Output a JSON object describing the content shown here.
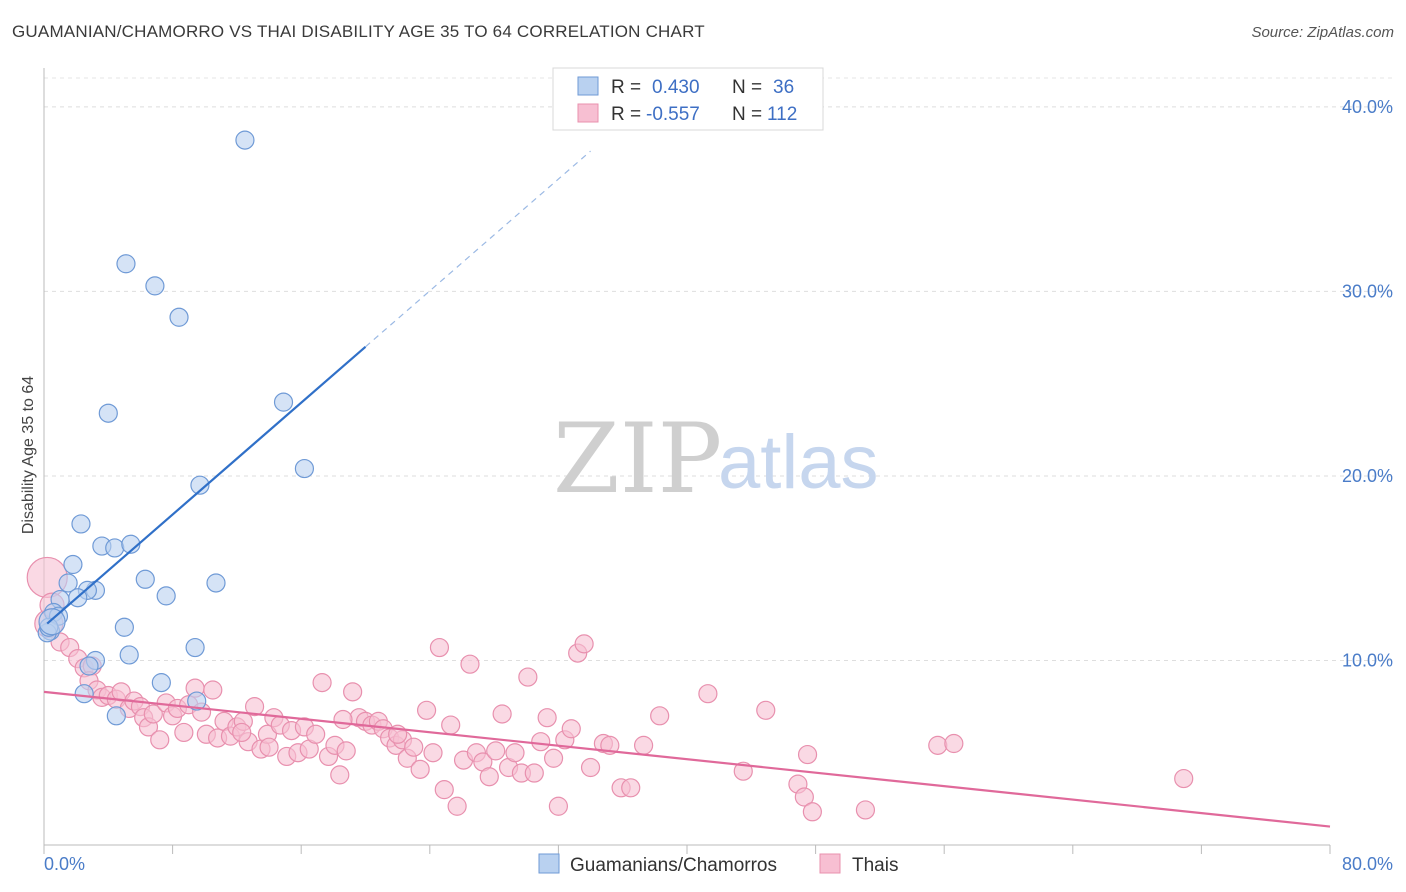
{
  "title": "GUAMANIAN/CHAMORRO VS THAI DISABILITY AGE 35 TO 64 CORRELATION CHART",
  "source": "Source: ZipAtlas.com",
  "watermark": {
    "zip": "ZIP",
    "atlas": "atlas"
  },
  "legend": {
    "r_label": "R =",
    "n_label": "N =",
    "rows": [
      {
        "r": "0.430",
        "n": "36"
      },
      {
        "r": "-0.557",
        "n": "112"
      }
    ]
  },
  "bottom_legend": [
    "Guamanians/Chamorros",
    "Thais"
  ],
  "colors": {
    "guam_fill": "#b9d1f0",
    "guam_stroke": "#6f9ad6",
    "guam_line": "#3070c8",
    "thai_fill": "#f7bfd2",
    "thai_stroke": "#e890ae",
    "thai_line": "#e0699a",
    "tick": "#4a7cc8"
  },
  "chart_data": {
    "type": "scatter",
    "title": "GUAMANIAN/CHAMORRO VS THAI DISABILITY AGE 35 TO 64 CORRELATION CHART",
    "xlabel": "",
    "ylabel": "Disability Age 35 to 64",
    "xlim": [
      0,
      80
    ],
    "ylim": [
      0,
      42
    ],
    "x_tick_labels": [
      "0.0%",
      "80.0%"
    ],
    "y_ticks": [
      10,
      20,
      30,
      40
    ],
    "y_tick_labels": [
      "10.0%",
      "20.0%",
      "30.0%",
      "40.0%"
    ],
    "grid": true,
    "legend_position": "top-center",
    "series": [
      {
        "name": "Guamanians/Chamorros",
        "r": 0.43,
        "n": 36,
        "trend": {
          "x0": 0.2,
          "y0": 12.0,
          "x1": 20.0,
          "y1": 27.0,
          "dashed_to_x": 34.0
        },
        "points": [
          [
            12.5,
            38.2
          ],
          [
            5.1,
            31.5
          ],
          [
            6.9,
            30.3
          ],
          [
            8.4,
            28.6
          ],
          [
            14.9,
            24.0
          ],
          [
            4.0,
            23.4
          ],
          [
            16.2,
            20.4
          ],
          [
            9.7,
            19.5
          ],
          [
            2.3,
            17.4
          ],
          [
            3.6,
            16.2
          ],
          [
            4.4,
            16.1
          ],
          [
            5.4,
            16.3
          ],
          [
            1.8,
            15.2
          ],
          [
            6.3,
            14.4
          ],
          [
            10.7,
            14.2
          ],
          [
            1.5,
            14.2
          ],
          [
            3.2,
            13.8
          ],
          [
            2.7,
            13.8
          ],
          [
            7.6,
            13.5
          ],
          [
            2.1,
            13.4
          ],
          [
            1.0,
            13.3
          ],
          [
            0.6,
            12.6
          ],
          [
            0.9,
            12.4
          ],
          [
            5.0,
            11.8
          ],
          [
            0.4,
            11.6
          ],
          [
            0.2,
            11.5
          ],
          [
            0.3,
            11.8
          ],
          [
            9.4,
            10.7
          ],
          [
            5.3,
            10.3
          ],
          [
            3.2,
            10.0
          ],
          [
            2.8,
            9.7
          ],
          [
            7.3,
            8.8
          ],
          [
            2.5,
            8.2
          ],
          [
            9.5,
            7.8
          ],
          [
            4.5,
            7.0
          ],
          [
            0.5,
            12.1
          ]
        ]
      },
      {
        "name": "Thais",
        "r": -0.557,
        "n": 112,
        "trend": {
          "x0": 0.0,
          "y0": 8.3,
          "x1": 80.0,
          "y1": 1.0
        },
        "points": [
          [
            0.2,
            14.5
          ],
          [
            0.3,
            12.0
          ],
          [
            0.5,
            13.0
          ],
          [
            1.0,
            11.0
          ],
          [
            1.6,
            10.7
          ],
          [
            2.1,
            10.1
          ],
          [
            2.5,
            9.6
          ],
          [
            3.0,
            9.7
          ],
          [
            2.8,
            8.9
          ],
          [
            3.3,
            8.4
          ],
          [
            3.6,
            8.0
          ],
          [
            4.0,
            8.1
          ],
          [
            4.5,
            7.9
          ],
          [
            4.8,
            8.3
          ],
          [
            5.3,
            7.4
          ],
          [
            5.6,
            7.8
          ],
          [
            6.0,
            7.5
          ],
          [
            6.2,
            6.9
          ],
          [
            6.5,
            6.4
          ],
          [
            6.8,
            7.1
          ],
          [
            7.2,
            5.7
          ],
          [
            7.6,
            7.7
          ],
          [
            8.0,
            7.0
          ],
          [
            8.3,
            7.4
          ],
          [
            8.7,
            6.1
          ],
          [
            9.0,
            7.6
          ],
          [
            9.4,
            8.5
          ],
          [
            9.8,
            7.2
          ],
          [
            10.1,
            6.0
          ],
          [
            10.5,
            8.4
          ],
          [
            10.8,
            5.8
          ],
          [
            11.2,
            6.7
          ],
          [
            11.6,
            5.9
          ],
          [
            12.0,
            6.4
          ],
          [
            12.4,
            6.7
          ],
          [
            12.7,
            5.6
          ],
          [
            13.1,
            7.5
          ],
          [
            13.5,
            5.2
          ],
          [
            13.9,
            6.0
          ],
          [
            14.3,
            6.9
          ],
          [
            14.7,
            6.5
          ],
          [
            15.1,
            4.8
          ],
          [
            15.4,
            6.2
          ],
          [
            15.8,
            5.0
          ],
          [
            16.2,
            6.4
          ],
          [
            16.5,
            5.2
          ],
          [
            16.9,
            6.0
          ],
          [
            17.3,
            8.8
          ],
          [
            17.7,
            4.8
          ],
          [
            18.1,
            5.4
          ],
          [
            18.4,
            3.8
          ],
          [
            18.8,
            5.1
          ],
          [
            19.2,
            8.3
          ],
          [
            19.6,
            6.9
          ],
          [
            20.0,
            6.7
          ],
          [
            20.4,
            6.5
          ],
          [
            20.8,
            6.7
          ],
          [
            21.1,
            6.3
          ],
          [
            21.5,
            5.8
          ],
          [
            21.9,
            5.4
          ],
          [
            22.3,
            5.7
          ],
          [
            22.6,
            4.7
          ],
          [
            23.0,
            5.3
          ],
          [
            23.4,
            4.1
          ],
          [
            23.8,
            7.3
          ],
          [
            24.2,
            5.0
          ],
          [
            24.6,
            10.7
          ],
          [
            24.9,
            3.0
          ],
          [
            25.3,
            6.5
          ],
          [
            25.7,
            2.1
          ],
          [
            26.1,
            4.6
          ],
          [
            26.5,
            9.8
          ],
          [
            26.9,
            5.0
          ],
          [
            27.3,
            4.5
          ],
          [
            27.7,
            3.7
          ],
          [
            28.1,
            5.1
          ],
          [
            28.5,
            7.1
          ],
          [
            28.9,
            4.2
          ],
          [
            29.3,
            5.0
          ],
          [
            29.7,
            3.9
          ],
          [
            30.1,
            9.1
          ],
          [
            30.5,
            3.9
          ],
          [
            30.9,
            5.6
          ],
          [
            31.3,
            6.9
          ],
          [
            31.7,
            4.7
          ],
          [
            32.0,
            2.1
          ],
          [
            32.4,
            5.7
          ],
          [
            32.8,
            6.3
          ],
          [
            33.2,
            10.4
          ],
          [
            33.6,
            10.9
          ],
          [
            34.0,
            4.2
          ],
          [
            34.8,
            5.5
          ],
          [
            35.2,
            5.4
          ],
          [
            35.9,
            3.1
          ],
          [
            36.5,
            3.1
          ],
          [
            37.3,
            5.4
          ],
          [
            38.3,
            7.0
          ],
          [
            41.3,
            8.2
          ],
          [
            43.5,
            4.0
          ],
          [
            44.9,
            7.3
          ],
          [
            46.9,
            3.3
          ],
          [
            47.3,
            2.6
          ],
          [
            47.8,
            1.8
          ],
          [
            47.5,
            4.9
          ],
          [
            51.1,
            1.9
          ],
          [
            55.6,
            5.4
          ],
          [
            56.6,
            5.5
          ],
          [
            70.9,
            3.6
          ],
          [
            12.3,
            6.1
          ],
          [
            14.0,
            5.3
          ],
          [
            18.6,
            6.8
          ],
          [
            22.0,
            6.0
          ]
        ]
      }
    ]
  }
}
